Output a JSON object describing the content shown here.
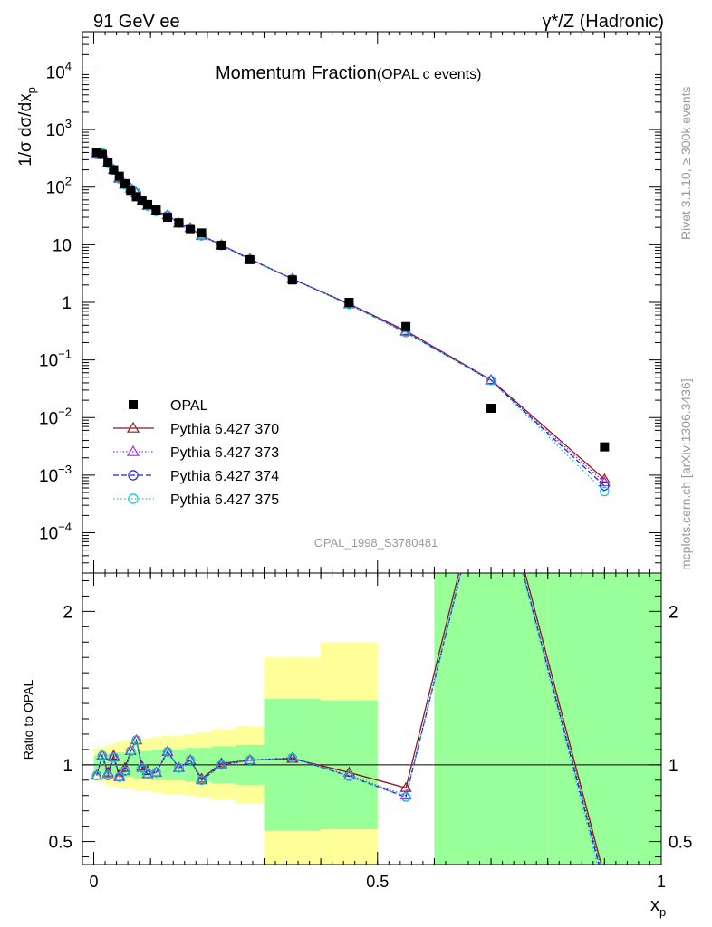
{
  "header": {
    "left_label": "91 GeV ee",
    "right_label": "γ*/Z (Hadronic)"
  },
  "side_labels": {
    "rivet": "Rivet 3.1.10, ≥ 300k events",
    "mcplots": "mcplots.cern.ch [arXiv:1306.3436]"
  },
  "chart_data": {
    "type": "line",
    "title_main": "Momentum Fraction",
    "title_sub": "(OPAL c events)",
    "analysis_id": "OPAL_1998_S3780481",
    "ylabel": "1/σ dσ/dx_p",
    "ratio_ylabel": "Ratio to OPAL",
    "xlabel": "x_p",
    "xlim": [
      -0.02,
      1.0
    ],
    "ylim_log": [
      2e-05,
      50000
    ],
    "ratio_ylim": [
      0.35,
      2.25
    ],
    "y_scale": "log",
    "x_ticks": [
      0,
      0.5,
      1
    ],
    "x_tick_labels": [
      "0",
      "0.5",
      "1"
    ],
    "y_ticks": [
      0.0001,
      0.001,
      0.01,
      0.1,
      1,
      10,
      100,
      1000,
      10000
    ],
    "y_tick_labels": [
      {
        "base": "10",
        "exp": "−4"
      },
      {
        "base": "10",
        "exp": "−3"
      },
      {
        "base": "10",
        "exp": "−2"
      },
      {
        "base": "10",
        "exp": "−1"
      },
      {
        "base": "1",
        "exp": ""
      },
      {
        "base": "10",
        "exp": ""
      },
      {
        "base": "10",
        "exp": "2"
      },
      {
        "base": "10",
        "exp": "3"
      },
      {
        "base": "10",
        "exp": "4"
      }
    ],
    "ratio_ticks": [
      0.5,
      1,
      2
    ],
    "ratio_tick_labels": [
      "0.5",
      "1",
      "2"
    ],
    "legend_position": "middle-left",
    "data": {
      "name": "OPAL",
      "x": [
        0.005,
        0.015,
        0.025,
        0.035,
        0.045,
        0.055,
        0.065,
        0.075,
        0.085,
        0.095,
        0.11,
        0.13,
        0.15,
        0.17,
        0.19,
        0.225,
        0.275,
        0.35,
        0.45,
        0.55,
        0.7,
        0.9
      ],
      "y": [
        400,
        370,
        270,
        200,
        155,
        115,
        88,
        68,
        58,
        50,
        40,
        30,
        24,
        19,
        16,
        9.8,
        5.5,
        2.45,
        1.0,
        0.38,
        0.0145,
        0.0031
      ],
      "band_inner": [
        0.06,
        0.06,
        0.07,
        0.07,
        0.08,
        0.08,
        0.08,
        0.09,
        0.09,
        0.09,
        0.1,
        0.1,
        0.1,
        0.11,
        0.11,
        0.12,
        0.13,
        0.14,
        0.43,
        0.42,
        2.0,
        2.0
      ],
      "band_outer": [
        0.11,
        0.11,
        0.13,
        0.14,
        0.15,
        0.16,
        0.16,
        0.17,
        0.17,
        0.17,
        0.18,
        0.19,
        0.19,
        0.2,
        0.21,
        0.23,
        0.25,
        0.27,
        0.7,
        0.8,
        3.0,
        3.0
      ]
    },
    "series": [
      {
        "name": "Pythia 6.427 370",
        "color": "#8b1a1a",
        "marker": "triangle-open",
        "dash": "",
        "y": [
          370,
          390,
          260,
          200,
          145,
          112,
          95,
          79,
          57,
          48,
          38,
          32.5,
          23.4,
          19.6,
          14.5,
          9.9,
          5.7,
          2.55,
          0.94,
          0.32,
          0.045,
          0.00085
        ],
        "ratio": [
          0.93,
          1.06,
          0.95,
          1.06,
          0.93,
          0.98,
          1.09,
          1.16,
          0.99,
          0.96,
          0.95,
          1.085,
          0.98,
          1.03,
          0.91,
          1.01,
          1.03,
          1.04,
          0.95,
          0.85,
          3.1,
          0.27
        ]
      },
      {
        "name": "Pythia 6.427 373",
        "color": "#9a2be2",
        "marker": "triangle-open",
        "dash": "1.5,2",
        "y": [
          370,
          390,
          260,
          200,
          140,
          110,
          95,
          80,
          57,
          47,
          38,
          32.5,
          23.5,
          19.6,
          14.3,
          9.8,
          5.6,
          2.55,
          0.93,
          0.31,
          0.044,
          0.00075
        ],
        "ratio": [
          0.93,
          1.06,
          0.94,
          1.05,
          0.92,
          0.96,
          1.09,
          1.16,
          0.98,
          0.94,
          0.95,
          1.085,
          0.98,
          1.03,
          0.9,
          1.0,
          1.03,
          1.045,
          0.93,
          0.8,
          3.05,
          0.24
        ]
      },
      {
        "name": "Pythia 6.427 374",
        "color": "#2222dd",
        "marker": "circle-open",
        "dash": "6,3",
        "y": [
          370,
          390,
          260,
          200,
          140,
          110,
          95,
          80,
          57,
          47,
          38,
          32.5,
          23.5,
          19.5,
          14.3,
          9.8,
          5.6,
          2.55,
          0.92,
          0.3,
          0.044,
          0.00065
        ],
        "ratio": [
          0.93,
          1.06,
          0.93,
          1.05,
          0.92,
          0.96,
          1.09,
          1.16,
          0.98,
          0.94,
          0.95,
          1.085,
          0.98,
          1.03,
          0.9,
          1.0,
          1.03,
          1.045,
          0.925,
          0.79,
          3.05,
          0.21
        ]
      },
      {
        "name": "Pythia 6.427 375",
        "color": "#00ced1",
        "marker": "circle-open",
        "dash": "1.5,2.5",
        "y": [
          370,
          390,
          260,
          200,
          140,
          110,
          95,
          80,
          57,
          47,
          38,
          32.5,
          23.5,
          19.5,
          14.3,
          9.8,
          5.6,
          2.55,
          0.92,
          0.3,
          0.044,
          0.00052
        ],
        "ratio": [
          0.93,
          1.06,
          0.93,
          1.05,
          0.92,
          0.96,
          1.09,
          1.16,
          0.98,
          0.94,
          0.95,
          1.085,
          0.98,
          1.03,
          0.9,
          1.0,
          1.03,
          1.045,
          0.925,
          0.79,
          3.05,
          0.17
        ]
      }
    ]
  }
}
